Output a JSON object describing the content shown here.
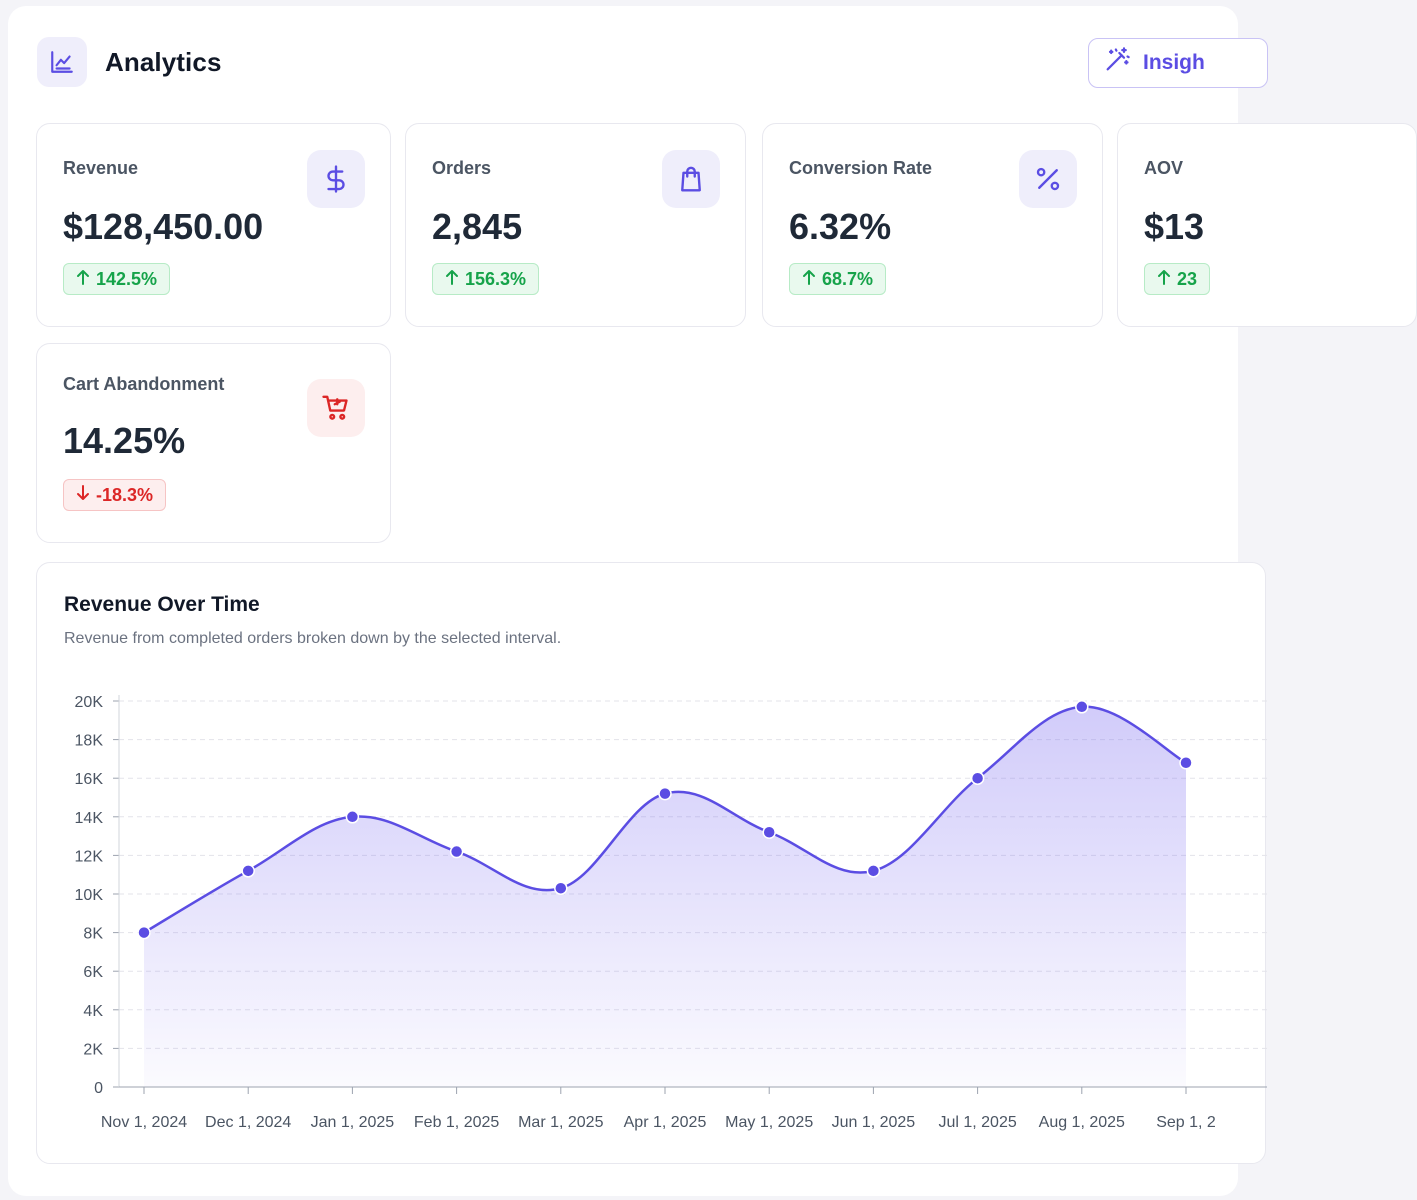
{
  "header": {
    "title": "Analytics",
    "icon": "chart-line-icon",
    "insights_label": "Insigh",
    "insights_icon": "magic-wand-icon"
  },
  "cards": [
    {
      "id": "revenue",
      "label": "Revenue",
      "value": "$128,450.00",
      "change": "142.5%",
      "direction": "up",
      "icon": "dollar-icon"
    },
    {
      "id": "orders",
      "label": "Orders",
      "value": "2,845",
      "change": "156.3%",
      "direction": "up",
      "icon": "shopping-bag-icon"
    },
    {
      "id": "conversion-rate",
      "label": "Conversion Rate",
      "value": "6.32%",
      "change": "68.7%",
      "direction": "up",
      "icon": "percent-icon"
    },
    {
      "id": "aov",
      "label": "AOV",
      "value": "$13",
      "change": "23",
      "direction": "up",
      "icon": ""
    },
    {
      "id": "cart-abandonment",
      "label": "Cart Abandonment",
      "value": "14.25%",
      "change": "-18.3%",
      "direction": "down",
      "icon": "cart-icon"
    }
  ],
  "colors": {
    "accent": "#5b4de3",
    "up": "#16a34a",
    "down": "#dc2626"
  },
  "chart": {
    "title": "Revenue Over Time",
    "subtitle": "Revenue from completed orders broken down by the selected interval."
  },
  "chart_data": {
    "type": "area",
    "x": [
      "Nov 1, 2024",
      "Dec 1, 2024",
      "Jan 1, 2025",
      "Feb 1, 2025",
      "Mar 1, 2025",
      "Apr 1, 2025",
      "May 1, 2025",
      "Jun 1, 2025",
      "Jul 1, 2025",
      "Aug 1, 2025",
      "Sep 1, 2"
    ],
    "series": [
      {
        "values": [
          8000,
          11200,
          14000,
          12200,
          10300,
          15200,
          13200,
          11200,
          16000,
          19700,
          16800
        ]
      }
    ],
    "y_ticks": [
      "0",
      "2K",
      "4K",
      "6K",
      "8K",
      "10K",
      "12K",
      "14K",
      "16K",
      "18K",
      "20K"
    ],
    "ylim": [
      0,
      20000
    ],
    "grid": true,
    "legend": "none",
    "title": "Revenue Over Time",
    "xlabel": "",
    "ylabel": ""
  }
}
